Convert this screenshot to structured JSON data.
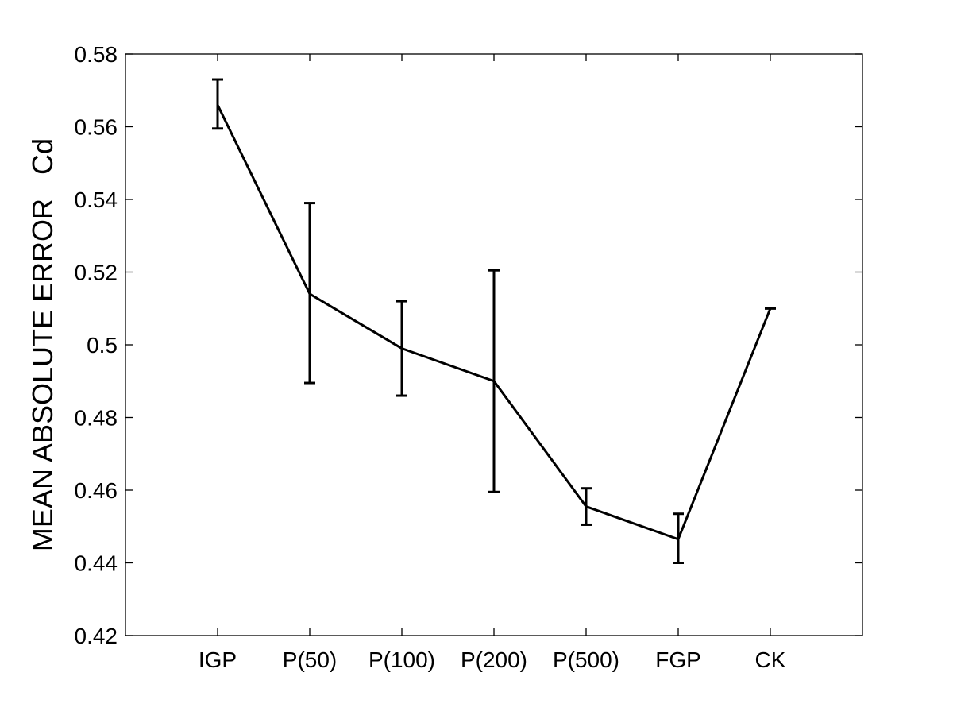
{
  "chart_data": {
    "type": "line",
    "title": "",
    "xlabel": "",
    "ylabel": "MEAN ABSOLUTE ERROR   Cd",
    "categories": [
      "IGP",
      "P(50)",
      "P(100)",
      "P(200)",
      "P(500)",
      "FGP",
      "CK"
    ],
    "ylim": [
      0.42,
      0.58
    ],
    "yticks": [
      "0.42",
      "0.44",
      "0.46",
      "0.48",
      "0.5",
      "0.52",
      "0.54",
      "0.56",
      "0.58"
    ],
    "grid": false,
    "series": [
      {
        "values": [
          0.566,
          0.514,
          0.499,
          0.49,
          0.4555,
          0.4465,
          0.51
        ],
        "error_low": [
          0.5595,
          0.4895,
          0.486,
          0.4595,
          0.4505,
          0.44,
          0.51
        ],
        "error_high": [
          0.573,
          0.539,
          0.512,
          0.5205,
          0.4605,
          0.4535,
          0.51
        ],
        "color": "#000000"
      }
    ]
  }
}
